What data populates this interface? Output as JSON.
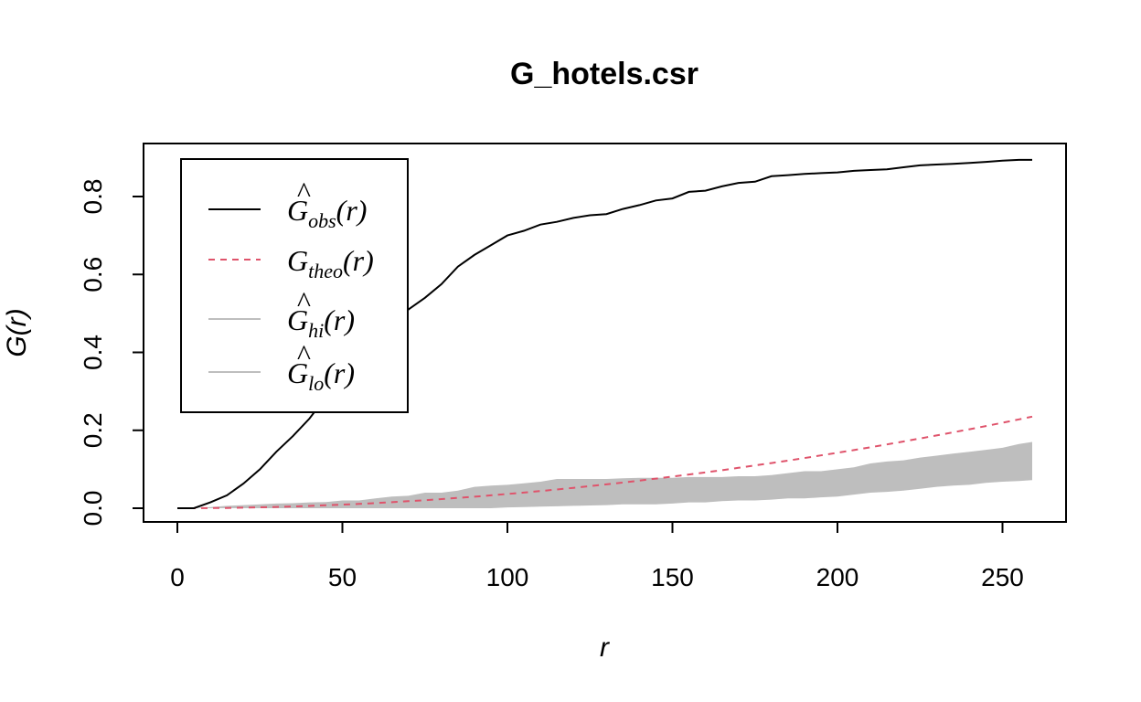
{
  "chart_data": {
    "type": "line",
    "title": "G_hotels.csr",
    "xlabel": "r",
    "ylabel": "G(r)",
    "xlim": [
      0,
      260
    ],
    "ylim": [
      0,
      0.9
    ],
    "x_ticks": [
      "0",
      "50",
      "100",
      "150",
      "200",
      "250"
    ],
    "y_ticks": [
      "0.0",
      "0.2",
      "0.4",
      "0.6",
      "0.8"
    ],
    "legend_position": "top-left",
    "grid": false,
    "legend": [
      {
        "label": "Ĝobs(r)",
        "symbol": "G",
        "sub": "obs",
        "hat": true,
        "style": "solid",
        "color": "#000000"
      },
      {
        "label": "Gtheo(r)",
        "symbol": "G",
        "sub": "theo",
        "hat": false,
        "style": "dashed",
        "color": "#DF536B"
      },
      {
        "label": "Ĝhi(r)",
        "symbol": "G",
        "sub": "hi",
        "hat": true,
        "style": "solid",
        "color": "#BEBEBE"
      },
      {
        "label": "Ĝlo(r)",
        "symbol": "G",
        "sub": "lo",
        "hat": true,
        "style": "solid",
        "color": "#BEBEBE"
      }
    ],
    "x": [
      0,
      5,
      10,
      15,
      20,
      25,
      30,
      35,
      40,
      45,
      50,
      55,
      60,
      65,
      70,
      75,
      80,
      85,
      90,
      95,
      100,
      105,
      110,
      115,
      120,
      125,
      130,
      135,
      140,
      145,
      150,
      155,
      160,
      165,
      170,
      175,
      180,
      185,
      190,
      195,
      200,
      205,
      210,
      215,
      220,
      225,
      230,
      235,
      240,
      245,
      250,
      255,
      259
    ],
    "series": [
      {
        "name": "obs",
        "color": "#000000",
        "style": "solid",
        "values": [
          0,
          0,
          0.015,
          0.033,
          0.063,
          0.1,
          0.145,
          0.185,
          0.23,
          0.285,
          0.33,
          0.37,
          0.41,
          0.445,
          0.51,
          0.54,
          0.575,
          0.62,
          0.65,
          0.675,
          0.7,
          0.712,
          0.728,
          0.735,
          0.745,
          0.752,
          0.755,
          0.768,
          0.778,
          0.79,
          0.795,
          0.812,
          0.815,
          0.826,
          0.835,
          0.838,
          0.852,
          0.855,
          0.858,
          0.86,
          0.862,
          0.866,
          0.868,
          0.87,
          0.875,
          0.88,
          0.882,
          0.884,
          0.886,
          0.889,
          0.892,
          0.894,
          0.894
        ]
      },
      {
        "name": "theo",
        "color": "#DF536B",
        "style": "dashed",
        "values": [
          0,
          0,
          0.0004,
          0.0008,
          0.0015,
          0.0023,
          0.0033,
          0.0045,
          0.0059,
          0.0075,
          0.0092,
          0.0111,
          0.0132,
          0.0155,
          0.018,
          0.0206,
          0.0234,
          0.0264,
          0.0296,
          0.033,
          0.0365,
          0.0402,
          0.044,
          0.0481,
          0.0523,
          0.0567,
          0.0612,
          0.0659,
          0.0708,
          0.0759,
          0.0811,
          0.0865,
          0.092,
          0.0977,
          0.1036,
          0.1097,
          0.1159,
          0.1222,
          0.1288,
          0.1355,
          0.1423,
          0.1493,
          0.1565,
          0.1638,
          0.1713,
          0.1789,
          0.1867,
          0.1947,
          0.2028,
          0.211,
          0.2194,
          0.228,
          0.235
        ]
      },
      {
        "name": "hi",
        "color": "#BEBEBE",
        "style": "solid",
        "values": [
          0,
          0,
          0.003,
          0.006,
          0.008,
          0.01,
          0.012,
          0.013,
          0.015,
          0.016,
          0.02,
          0.02,
          0.025,
          0.03,
          0.032,
          0.04,
          0.04,
          0.045,
          0.055,
          0.058,
          0.06,
          0.064,
          0.068,
          0.075,
          0.075,
          0.075,
          0.075,
          0.077,
          0.078,
          0.078,
          0.078,
          0.08,
          0.08,
          0.08,
          0.082,
          0.082,
          0.085,
          0.09,
          0.095,
          0.095,
          0.1,
          0.105,
          0.115,
          0.12,
          0.123,
          0.13,
          0.135,
          0.14,
          0.145,
          0.15,
          0.155,
          0.165,
          0.17
        ]
      },
      {
        "name": "lo",
        "color": "#BEBEBE",
        "style": "solid",
        "values": [
          0,
          0,
          0,
          0,
          0,
          0,
          0,
          0,
          0,
          0,
          0,
          0,
          0,
          0,
          0,
          0,
          0,
          0,
          0,
          0,
          0.002,
          0.003,
          0.004,
          0.005,
          0.006,
          0.007,
          0.008,
          0.01,
          0.01,
          0.01,
          0.012,
          0.015,
          0.015,
          0.018,
          0.02,
          0.02,
          0.022,
          0.025,
          0.025,
          0.028,
          0.03,
          0.035,
          0.04,
          0.042,
          0.045,
          0.05,
          0.055,
          0.058,
          0.06,
          0.065,
          0.068,
          0.07,
          0.072
        ]
      }
    ]
  }
}
